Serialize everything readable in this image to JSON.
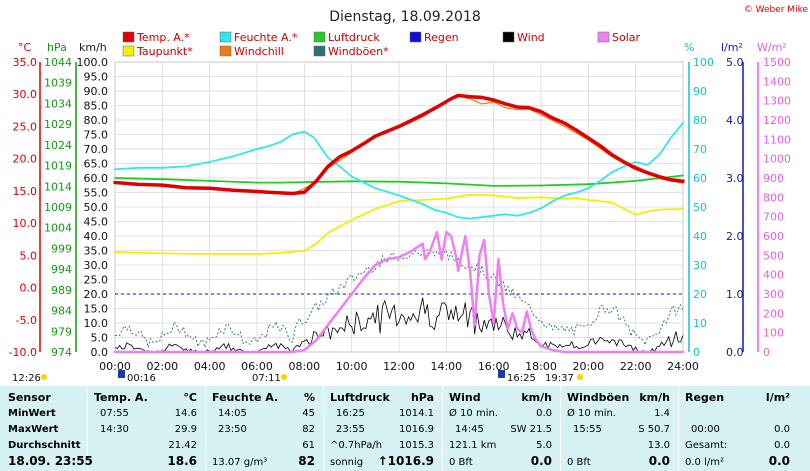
{
  "title": "Dienstag, 18.09.2018",
  "copyright": "© Weber Mike",
  "axis_units": {
    "temp": "°C",
    "pressure": "hPa",
    "speed": "km/h",
    "humidity": "%",
    "rain": "l/m²",
    "solar": "W/m²"
  },
  "legend": [
    {
      "name": "Temp. A.*",
      "color": "#e00000"
    },
    {
      "name": "Feuchte A.*",
      "color": "#33e6ee"
    },
    {
      "name": "Luftdruck",
      "color": "#22cc22"
    },
    {
      "name": "Regen",
      "color": "#1010dd"
    },
    {
      "name": "Wind",
      "color": "#000000"
    },
    {
      "name": "Solar",
      "color": "#f080f0"
    },
    {
      "name": "Taupunkt*",
      "color": "#f2f000"
    },
    {
      "name": "Windchill",
      "color": "#ee7a18"
    },
    {
      "name": "Windböen*",
      "color": "#2e6f6f"
    }
  ],
  "chart_data": {
    "type": "line",
    "xlim": [
      0,
      24
    ],
    "x_ticks": [
      "00:00",
      "02:00",
      "04:00",
      "06:00",
      "08:00",
      "10:00",
      "12:00",
      "14:00",
      "16:00",
      "18:00",
      "20:00",
      "22:00",
      "24:00"
    ],
    "axes": {
      "temp": {
        "ticks": [
          "35.0",
          "30.0",
          "25.0",
          "20.0",
          "15.0",
          "10.0",
          "5.0",
          "0.0",
          "-5.0",
          "-10.0"
        ],
        "range": [
          -10,
          35
        ]
      },
      "pressure": {
        "ticks": [
          "1044",
          "1039",
          "1034",
          "1029",
          "1024",
          "1019",
          "1014",
          "1009",
          "1004",
          "999",
          "994",
          "989",
          "984",
          "979",
          "974"
        ],
        "range": [
          974,
          1044
        ]
      },
      "speed": {
        "ticks": [
          "100.0",
          "95.0",
          "90.0",
          "85.0",
          "80.0",
          "75.0",
          "70.0",
          "65.0",
          "60.0",
          "55.0",
          "50.0",
          "45.0",
          "40.0",
          "35.0",
          "30.0",
          "25.0",
          "20.0",
          "15.0",
          "10.0",
          "5.0",
          "0.0"
        ],
        "range": [
          0,
          100
        ]
      },
      "humidity": {
        "ticks": [
          "100",
          "90",
          "80",
          "70",
          "60",
          "50",
          "40",
          "30",
          "20",
          "10",
          "0"
        ],
        "range": [
          0,
          100
        ]
      },
      "rain": {
        "ticks": [
          "5.0",
          "4.0",
          "3.0",
          "2.0",
          "1.0",
          "0.0"
        ],
        "range": [
          0,
          5
        ]
      },
      "solar": {
        "ticks": [
          "1500",
          "1400",
          "1300",
          "1200",
          "1100",
          "1000",
          "900",
          "800",
          "700",
          "600",
          "500",
          "400",
          "300",
          "200",
          "100",
          "0"
        ],
        "range": [
          0,
          1500
        ]
      }
    },
    "series": [
      {
        "name": "Temp. A.*",
        "axis": "temp",
        "color": "#e00000",
        "width": 3.5,
        "points": [
          [
            0,
            16.3
          ],
          [
            1,
            16
          ],
          [
            2,
            15.9
          ],
          [
            3,
            15.5
          ],
          [
            4,
            15.4
          ],
          [
            5,
            15.1
          ],
          [
            6,
            14.9
          ],
          [
            6.5,
            14.8
          ],
          [
            7.5,
            14.6
          ],
          [
            8,
            14.8
          ],
          [
            8.5,
            16.5
          ],
          [
            9,
            18.8
          ],
          [
            9.5,
            20.3
          ],
          [
            10,
            21.2
          ],
          [
            10.5,
            22.3
          ],
          [
            11,
            23.5
          ],
          [
            12,
            25
          ],
          [
            13,
            26.8
          ],
          [
            13.6,
            28
          ],
          [
            14.2,
            29.3
          ],
          [
            14.5,
            29.8
          ],
          [
            15,
            29.6
          ],
          [
            15.5,
            29.5
          ],
          [
            16,
            29.1
          ],
          [
            16.5,
            28.5
          ],
          [
            17,
            28
          ],
          [
            17.5,
            27.9
          ],
          [
            18,
            27.3
          ],
          [
            18.5,
            26.3
          ],
          [
            19,
            25.5
          ],
          [
            19.5,
            24.4
          ],
          [
            20,
            23.2
          ],
          [
            20.5,
            22
          ],
          [
            21,
            20.6
          ],
          [
            21.5,
            19.5
          ],
          [
            22,
            18.5
          ],
          [
            22.5,
            17.8
          ],
          [
            23,
            17.2
          ],
          [
            23.5,
            16.7
          ],
          [
            24,
            16.5
          ]
        ]
      },
      {
        "name": "Windchill",
        "axis": "temp",
        "color": "#ee7a18",
        "width": 1.2,
        "points": [
          [
            0,
            16.2
          ],
          [
            2,
            15.8
          ],
          [
            4,
            15.3
          ],
          [
            6,
            14.8
          ],
          [
            7.5,
            14.5
          ],
          [
            8.5,
            16.3
          ],
          [
            9,
            18.5
          ],
          [
            10,
            21
          ],
          [
            11,
            23.3
          ],
          [
            12,
            24.8
          ],
          [
            13,
            26.5
          ],
          [
            14,
            29
          ],
          [
            14.5,
            29.7
          ],
          [
            15,
            29.3
          ],
          [
            15.5,
            28.5
          ],
          [
            16,
            28.8
          ],
          [
            16.5,
            27.9
          ],
          [
            17,
            27.6
          ],
          [
            17.5,
            27.7
          ],
          [
            18,
            26.8
          ],
          [
            19,
            25
          ],
          [
            20,
            22.9
          ],
          [
            21,
            20.3
          ],
          [
            21.5,
            19.3
          ],
          [
            22,
            18.9
          ],
          [
            23,
            16.9
          ],
          [
            24,
            16.2
          ]
        ]
      },
      {
        "name": "Feuchte A.*",
        "axis": "humidity",
        "color": "#33e6ee",
        "width": 1.8,
        "points": [
          [
            0,
            63
          ],
          [
            1,
            63.5
          ],
          [
            2,
            63.5
          ],
          [
            3,
            64
          ],
          [
            4,
            65.5
          ],
          [
            5,
            67.5
          ],
          [
            6,
            70
          ],
          [
            6.5,
            71
          ],
          [
            7,
            72.5
          ],
          [
            7.5,
            75
          ],
          [
            8,
            76
          ],
          [
            8.4,
            74
          ],
          [
            9,
            67
          ],
          [
            9.5,
            64
          ],
          [
            10,
            60.5
          ],
          [
            10.5,
            58.5
          ],
          [
            11,
            56.5
          ],
          [
            12,
            54
          ],
          [
            13,
            51
          ],
          [
            13.5,
            49
          ],
          [
            14,
            48
          ],
          [
            14.5,
            46.5
          ],
          [
            15,
            46
          ],
          [
            15.5,
            46.5
          ],
          [
            16,
            47
          ],
          [
            16.5,
            47.5
          ],
          [
            17,
            47
          ],
          [
            17.5,
            48
          ],
          [
            18,
            49.5
          ],
          [
            18.5,
            52
          ],
          [
            19,
            54
          ],
          [
            19.5,
            55
          ],
          [
            20,
            56.5
          ],
          [
            20.5,
            59
          ],
          [
            21,
            62
          ],
          [
            21.5,
            64
          ],
          [
            22,
            65.5
          ],
          [
            22.5,
            64.5
          ],
          [
            23,
            68
          ],
          [
            23.5,
            74
          ],
          [
            24,
            79
          ]
        ]
      },
      {
        "name": "Luftdruck",
        "axis": "pressure",
        "color": "#22cc22",
        "width": 1.8,
        "points": [
          [
            0,
            1016
          ],
          [
            2,
            1015.7
          ],
          [
            4,
            1015.3
          ],
          [
            6,
            1014.9
          ],
          [
            7,
            1014.9
          ],
          [
            8,
            1015
          ],
          [
            10,
            1015.2
          ],
          [
            12,
            1015.1
          ],
          [
            14,
            1014.7
          ],
          [
            16,
            1014.1
          ],
          [
            18,
            1014.2
          ],
          [
            20,
            1014.5
          ],
          [
            22,
            1015.3
          ],
          [
            24,
            1016.6
          ]
        ]
      },
      {
        "name": "Taupunkt*",
        "axis": "temp",
        "color": "#f2f000",
        "width": 1.8,
        "points": [
          [
            0,
            5.5
          ],
          [
            2,
            5.3
          ],
          [
            4,
            5.2
          ],
          [
            6,
            5.2
          ],
          [
            7,
            5.4
          ],
          [
            8,
            5.7
          ],
          [
            8.5,
            6.8
          ],
          [
            9,
            8.5
          ],
          [
            10,
            10.5
          ],
          [
            11,
            12.2
          ],
          [
            12,
            13.4
          ],
          [
            13,
            13.6
          ],
          [
            14,
            13.8
          ],
          [
            15,
            14.4
          ],
          [
            16,
            14.3
          ],
          [
            17,
            13.9
          ],
          [
            18,
            14
          ],
          [
            19,
            13.8
          ],
          [
            19.5,
            13.9
          ],
          [
            20,
            13.6
          ],
          [
            21,
            13.2
          ],
          [
            22,
            11.3
          ],
          [
            22.5,
            11.8
          ],
          [
            23,
            12.1
          ],
          [
            24,
            12.2
          ]
        ]
      },
      {
        "name": "Solar",
        "axis": "solar",
        "color": "#f080f0",
        "width": 2.5,
        "points": [
          [
            0,
            0
          ],
          [
            7.5,
            0
          ],
          [
            8,
            10
          ],
          [
            8.5,
            60
          ],
          [
            9,
            140
          ],
          [
            9.5,
            220
          ],
          [
            10,
            300
          ],
          [
            10.5,
            380
          ],
          [
            11,
            450
          ],
          [
            11.5,
            480
          ],
          [
            12,
            490
          ],
          [
            12.5,
            520
          ],
          [
            13,
            560
          ],
          [
            13.1,
            480
          ],
          [
            13.3,
            520
          ],
          [
            13.6,
            620
          ],
          [
            13.8,
            480
          ],
          [
            14,
            620
          ],
          [
            14.2,
            600
          ],
          [
            14.4,
            500
          ],
          [
            14.5,
            420
          ],
          [
            14.8,
            600
          ],
          [
            15,
            420
          ],
          [
            15.2,
            140
          ],
          [
            15.4,
            500
          ],
          [
            15.6,
            580
          ],
          [
            15.8,
            300
          ],
          [
            16,
            150
          ],
          [
            16.2,
            480
          ],
          [
            16.4,
            250
          ],
          [
            16.6,
            120
          ],
          [
            16.8,
            200
          ],
          [
            17,
            120
          ],
          [
            17.2,
            100
          ],
          [
            17.4,
            210
          ],
          [
            17.6,
            110
          ],
          [
            17.8,
            60
          ],
          [
            18,
            30
          ],
          [
            18.5,
            10
          ],
          [
            19,
            0
          ],
          [
            24,
            0
          ]
        ]
      }
    ],
    "rain_level": {
      "name": "Regen",
      "value": 1.0,
      "color": "#1010dd"
    },
    "markers": [
      "12:26",
      "00:16",
      "07:11",
      "16:25",
      "19:37"
    ]
  },
  "table": {
    "columns": [
      {
        "header": "Sensor",
        "rows": [
          "MinWert",
          "MaxWert",
          "Durchschnitt",
          "18.09. 23:55"
        ]
      },
      {
        "header": "Temp. A.",
        "unit": "°C",
        "rows": [
          [
            "07:55",
            "14.6"
          ],
          [
            "14:30",
            "29.9"
          ],
          [
            "",
            "21.42"
          ],
          [
            "",
            "18.6"
          ]
        ]
      },
      {
        "header": "Feuchte A.",
        "unit": "%",
        "rows": [
          [
            "14:05",
            "45"
          ],
          [
            "23:50",
            "82"
          ],
          [
            "",
            "61"
          ],
          [
            "13.07 g/m³",
            "82"
          ]
        ]
      },
      {
        "header": "Luftdruck",
        "unit": "hPa",
        "rows": [
          [
            "16:25",
            "1014.1"
          ],
          [
            "23:55",
            "1016.9"
          ],
          [
            "^0.7hPa/h",
            "1015.3"
          ],
          [
            "sonnig",
            "↑1016.9"
          ]
        ]
      },
      {
        "header": "Wind",
        "unit": "km/h",
        "rows": [
          [
            "Ø 10 min.",
            "",
            "0.0"
          ],
          [
            "14:45",
            "SW 21.5",
            ""
          ],
          [
            "121.1 km",
            "",
            "5.0"
          ],
          [
            "0 Bft",
            "",
            "0.0"
          ]
        ]
      },
      {
        "header": "Windböen",
        "unit": "km/h",
        "rows": [
          [
            "Ø 10 min.",
            "",
            "1.4"
          ],
          [
            "15:55",
            "S 50.7",
            ""
          ],
          [
            "",
            "",
            "13.0"
          ],
          [
            "0 Bft",
            "",
            "0.0"
          ]
        ]
      },
      {
        "header": "Regen",
        "unit": "l/m²",
        "rows": [
          [
            "",
            ""
          ],
          [
            "00:00",
            "0.0"
          ],
          [
            "Gesamt:",
            "0.0"
          ],
          [
            "0.0 l/m²",
            "0.0"
          ]
        ]
      }
    ]
  }
}
